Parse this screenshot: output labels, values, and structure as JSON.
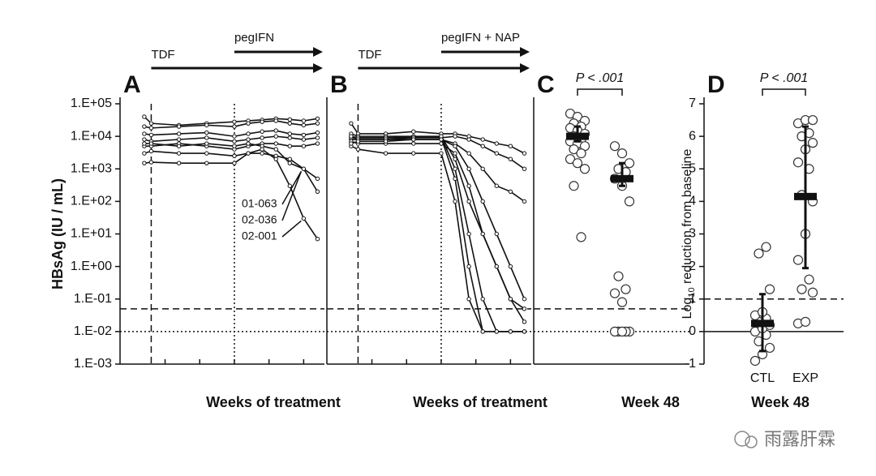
{
  "chart_data": [
    {
      "type": "line",
      "panel_label": "A",
      "ylabel": "HBsAg (IU / mL)",
      "xlabel": "Weeks of treatment",
      "log_y": true,
      "ylim": [
        0.001,
        100000
      ],
      "yticks": [
        {
          "value": 0.001,
          "label": "1.E-03"
        },
        {
          "value": 0.01,
          "label": "1.E-02"
        },
        {
          "value": 0.1,
          "label": "1.E-01"
        },
        {
          "value": 1,
          "label": "1.E+00"
        },
        {
          "value": 10,
          "label": "1.E+01"
        },
        {
          "value": 100,
          "label": "1.E+02"
        },
        {
          "value": 1000,
          "label": "1.E+03"
        },
        {
          "value": 10000,
          "label": "1.E+04"
        },
        {
          "value": 100000,
          "label": "1.E+05"
        }
      ],
      "xlim": [
        -9,
        50
      ],
      "xticks": [
        4,
        14,
        24,
        34,
        44
      ],
      "x": [
        -2,
        0,
        8,
        16,
        24,
        28,
        32,
        36,
        40,
        44,
        48
      ],
      "color": "#111111",
      "vlines": [
        {
          "x": 0,
          "style": "dashed"
        },
        {
          "x": 24,
          "style": "dotted"
        }
      ],
      "hlines": [
        {
          "y": 0.05,
          "style": "dashed"
        },
        {
          "y": 0.01,
          "style": "dotted"
        }
      ],
      "arrows": [
        {
          "label": "TDF",
          "start": 0
        },
        {
          "label": "pegIFN",
          "start": 24
        }
      ],
      "series": [
        {
          "values": [
            40000,
            25000,
            22000,
            25000,
            28000,
            30000,
            32000,
            35000,
            33000,
            30000,
            35000
          ]
        },
        {
          "values": [
            20000,
            18000,
            20000,
            22000,
            20000,
            25000,
            28000,
            30000,
            25000,
            22000,
            25000
          ]
        },
        {
          "values": [
            12000,
            11000,
            12000,
            13000,
            10000,
            12000,
            14000,
            15000,
            12000,
            11000,
            13000
          ]
        },
        {
          "values": [
            8000,
            7000,
            8000,
            9000,
            7000,
            8000,
            9000,
            10000,
            9000,
            8000,
            9000
          ]
        },
        {
          "values": [
            5000,
            5000,
            6000,
            5000,
            4000,
            5000,
            6000,
            6000,
            5000,
            5000,
            6000
          ]
        },
        {
          "name": "01-063",
          "values": [
            3000,
            3500,
            3000,
            3000,
            2500,
            3000,
            3000,
            2500,
            2000,
            1000,
            500
          ]
        },
        {
          "name": "02-036",
          "values": [
            6000,
            6000,
            5000,
            6000,
            5000,
            6000,
            5000,
            4000,
            1500,
            1000,
            200
          ]
        },
        {
          "name": "02-001",
          "values": [
            1500,
            1600,
            1500,
            1500,
            1500,
            3000,
            4000,
            2000,
            300,
            30,
            7
          ]
        }
      ]
    },
    {
      "type": "line",
      "panel_label": "B",
      "xlabel": "Weeks of treatment",
      "log_y": true,
      "ylim": [
        0.001,
        100000
      ],
      "xlim": [
        -9,
        50
      ],
      "xticks": [
        4,
        14,
        24,
        34,
        44
      ],
      "x": [
        -2,
        0,
        8,
        16,
        24,
        28,
        32,
        36,
        40,
        44,
        48
      ],
      "color": "#111111",
      "vlines": [
        {
          "x": 0,
          "style": "dashed"
        },
        {
          "x": 24,
          "style": "dotted"
        }
      ],
      "hlines": [
        {
          "y": 0.05,
          "style": "dashed"
        },
        {
          "y": 0.01,
          "style": "dotted"
        }
      ],
      "arrows": [
        {
          "label": "TDF",
          "start": 0
        },
        {
          "label": "pegIFN + NAP",
          "start": 24
        }
      ],
      "series": [
        {
          "values": [
            25000,
            12000,
            12000,
            14000,
            12000,
            12000,
            10000,
            8000,
            6000,
            5000,
            3000
          ]
        },
        {
          "values": [
            10000,
            9000,
            9000,
            10000,
            9000,
            10000,
            8000,
            5000,
            3000,
            2000,
            1000
          ]
        },
        {
          "values": [
            8000,
            8000,
            8000,
            8000,
            8000,
            6000,
            3000,
            1000,
            300,
            200,
            100
          ]
        },
        {
          "values": [
            7000,
            6000,
            6000,
            6000,
            6000,
            3000,
            300,
            10,
            1,
            0.1,
            0.05
          ]
        },
        {
          "values": [
            12000,
            10000,
            10000,
            10000,
            10000,
            1000,
            10,
            0.1,
            0.01,
            0.01,
            0.01
          ]
        },
        {
          "values": [
            9000,
            9000,
            9000,
            9000,
            9000,
            500,
            1,
            0.01,
            0.01,
            0.01,
            0.01
          ]
        },
        {
          "values": [
            5000,
            4000,
            3000,
            3000,
            3000,
            100,
            0.1,
            0.01,
            0.01,
            0.01,
            0.01
          ]
        },
        {
          "values": [
            10000,
            8000,
            8000,
            9000,
            10000,
            2000,
            100,
            10,
            1,
            0.1,
            0.02
          ]
        },
        {
          "values": [
            6000,
            7000,
            7000,
            8000,
            8000,
            5000,
            1000,
            100,
            10,
            1,
            0.1
          ]
        }
      ]
    },
    {
      "type": "strip",
      "panel_label": "C",
      "xlabel": "Week 48",
      "log_y": true,
      "ylim": [
        0.001,
        100000
      ],
      "p_label": "P < .001",
      "hlines": [
        {
          "y": 0.05,
          "style": "dashed"
        },
        {
          "y": 0.01,
          "style": "dotted"
        }
      ],
      "groups": [
        {
          "values": [
            50000,
            40000,
            30000,
            25000,
            20000,
            18000,
            15000,
            12000,
            10000,
            8000,
            7000,
            6000,
            5000,
            4000,
            3000,
            2000,
            1500,
            1000,
            300,
            8
          ],
          "center": 10000,
          "low": 7000,
          "high": 20000
        },
        {
          "values": [
            5000,
            3000,
            1500,
            1000,
            800,
            500,
            300,
            100,
            0.5,
            0.2,
            0.15,
            0.08,
            0.01,
            0.01,
            0.01,
            0.01,
            0.01
          ],
          "center": 500,
          "low": 300,
          "high": 1500
        }
      ]
    },
    {
      "type": "strip",
      "panel_label": "D",
      "xlabel": "Week 48",
      "ylabel_parts": [
        "Log",
        "10",
        " reduction from baseline"
      ],
      "ylim": [
        -1,
        7
      ],
      "yticks": [
        -1,
        0,
        1,
        2,
        3,
        4,
        5,
        6,
        7
      ],
      "categories": [
        "CTL",
        "EXP"
      ],
      "p_label": "P < .001",
      "hlines": [
        {
          "y": 1,
          "style": "dashed"
        },
        {
          "y": 0,
          "style": "solid"
        }
      ],
      "groups": [
        {
          "values": [
            -0.9,
            -0.7,
            -0.5,
            -0.3,
            -0.1,
            0,
            0.1,
            0.2,
            0.3,
            0.4,
            0.5,
            0.6,
            1.3,
            2.4,
            2.6
          ],
          "center": 0.25,
          "low": -0.6,
          "high": 1.15
        },
        {
          "values": [
            0.25,
            0.3,
            1.2,
            1.3,
            1.6,
            2.2,
            3,
            4,
            4.2,
            5,
            5.2,
            5.6,
            5.8,
            6,
            6.1,
            6.4,
            6.5,
            6.5
          ],
          "center": 4.15,
          "low": 1.95,
          "high": 6.3
        }
      ]
    }
  ],
  "watermark": "雨露肝霖"
}
